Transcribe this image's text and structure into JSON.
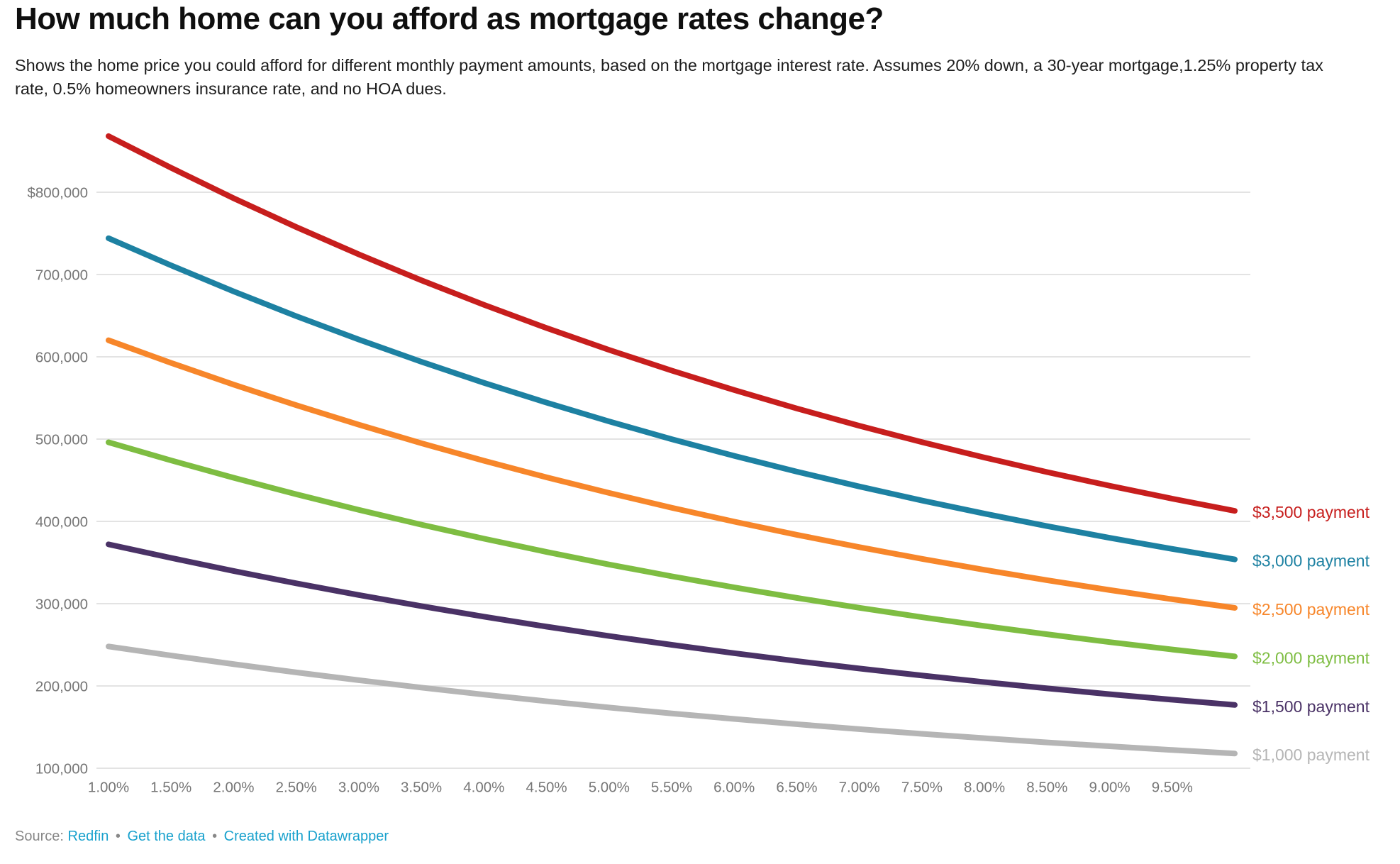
{
  "header": {
    "title": "How much home can you afford as mortgage rates change?",
    "subtitle": "Shows the home price you could afford for different monthly payment amounts, based on the mortgage interest rate. Assumes 20% down, a 30-year mortgage,1.25% property tax rate, 0.5% homeowners insurance rate, and no HOA dues."
  },
  "footer": {
    "source_label": "Source:",
    "source_link": "Redfin",
    "separator": "•",
    "get_data_link": "Get the data",
    "credit_link": "Created with Datawrapper"
  },
  "colors": {
    "grid": "#dadada",
    "tick_text": "#767676",
    "title_text": "#0f0f0f",
    "subtitle_text": "#1d1d1d",
    "footer_text": "#888888",
    "link": "#18a1cd"
  },
  "chart_data": {
    "type": "line",
    "title": "How much home can you afford as mortgage rates change?",
    "xlabel": "",
    "ylabel": "",
    "xlim": [
      1.0,
      10.0
    ],
    "grid_ylim": [
      100000,
      800000
    ],
    "grid": "horizontal",
    "legend_position": "right-of-line-ends",
    "x": [
      1.0,
      1.5,
      2.0,
      2.5,
      3.0,
      3.5,
      4.0,
      4.5,
      5.0,
      5.5,
      6.0,
      6.5,
      7.0,
      7.5,
      8.0,
      8.5,
      9.0,
      9.5,
      10.0
    ],
    "x_ticks": [
      {
        "value": 1.0,
        "label": "1.00%"
      },
      {
        "value": 1.5,
        "label": "1.50%"
      },
      {
        "value": 2.0,
        "label": "2.00%"
      },
      {
        "value": 2.5,
        "label": "2.50%"
      },
      {
        "value": 3.0,
        "label": "3.00%"
      },
      {
        "value": 3.5,
        "label": "3.50%"
      },
      {
        "value": 4.0,
        "label": "4.00%"
      },
      {
        "value": 4.5,
        "label": "4.50%"
      },
      {
        "value": 5.0,
        "label": "5.00%"
      },
      {
        "value": 5.5,
        "label": "5.50%"
      },
      {
        "value": 6.0,
        "label": "6.00%"
      },
      {
        "value": 6.5,
        "label": "6.50%"
      },
      {
        "value": 7.0,
        "label": "7.00%"
      },
      {
        "value": 7.5,
        "label": "7.50%"
      },
      {
        "value": 8.0,
        "label": "8.00%"
      },
      {
        "value": 8.5,
        "label": "8.50%"
      },
      {
        "value": 9.0,
        "label": "9.00%"
      },
      {
        "value": 9.5,
        "label": "9.50%"
      }
    ],
    "y_ticks": [
      {
        "value": 800000,
        "label": "$800,000"
      },
      {
        "value": 700000,
        "label": "700,000"
      },
      {
        "value": 600000,
        "label": "600,000"
      },
      {
        "value": 500000,
        "label": "500,000"
      },
      {
        "value": 400000,
        "label": "400,000"
      },
      {
        "value": 300000,
        "label": "300,000"
      },
      {
        "value": 200000,
        "label": "200,000"
      },
      {
        "value": 100000,
        "label": "100,000"
      }
    ],
    "series": [
      {
        "id": "3500-payment",
        "name": "$3,500 payment",
        "color": "#c71e1d",
        "values": [
          868200,
          829700,
          792700,
          757700,
          724500,
          693000,
          663200,
          635000,
          608400,
          583300,
          559600,
          537200,
          516200,
          496300,
          477600,
          459900,
          443300,
          427600,
          412800
        ]
      },
      {
        "id": "3000-payment",
        "name": "$3,000 payment",
        "color": "#1d81a2",
        "values": [
          744100,
          711100,
          679500,
          649400,
          621000,
          594000,
          568400,
          544300,
          521500,
          499900,
          479600,
          460500,
          442400,
          425400,
          409400,
          394200,
          380000,
          366500,
          353800
        ]
      },
      {
        "id": "2500-payment",
        "name": "$2,500 payment",
        "color": "#f7862a",
        "values": [
          620100,
          592600,
          566200,
          541200,
          517500,
          495000,
          473700,
          453600,
          434600,
          416600,
          399700,
          383700,
          368700,
          354500,
          341100,
          328500,
          316600,
          305400,
          294900
        ]
      },
      {
        "id": "2000-payment",
        "name": "$2,000 payment",
        "color": "#7ebd42",
        "values": [
          496100,
          474100,
          453000,
          433000,
          414000,
          396000,
          379000,
          362900,
          347600,
          333300,
          319800,
          307000,
          295000,
          283600,
          272900,
          262800,
          253300,
          244300,
          235900
        ]
      },
      {
        "id": "1500-payment",
        "name": "$1,500 payment",
        "color": "#4a3266",
        "values": [
          372100,
          355600,
          339700,
          324700,
          310500,
          297000,
          284200,
          272100,
          260700,
          250000,
          239800,
          230200,
          221200,
          212700,
          204700,
          197100,
          190000,
          183300,
          176900
        ]
      },
      {
        "id": "1000-payment",
        "name": "$1,000 payment",
        "color": "#b5b5b5",
        "values": [
          248000,
          237000,
          226500,
          216500,
          207000,
          198000,
          189500,
          181400,
          173800,
          166600,
          159900,
          153500,
          147500,
          141800,
          136500,
          131400,
          126700,
          122200,
          117900
        ]
      }
    ]
  }
}
